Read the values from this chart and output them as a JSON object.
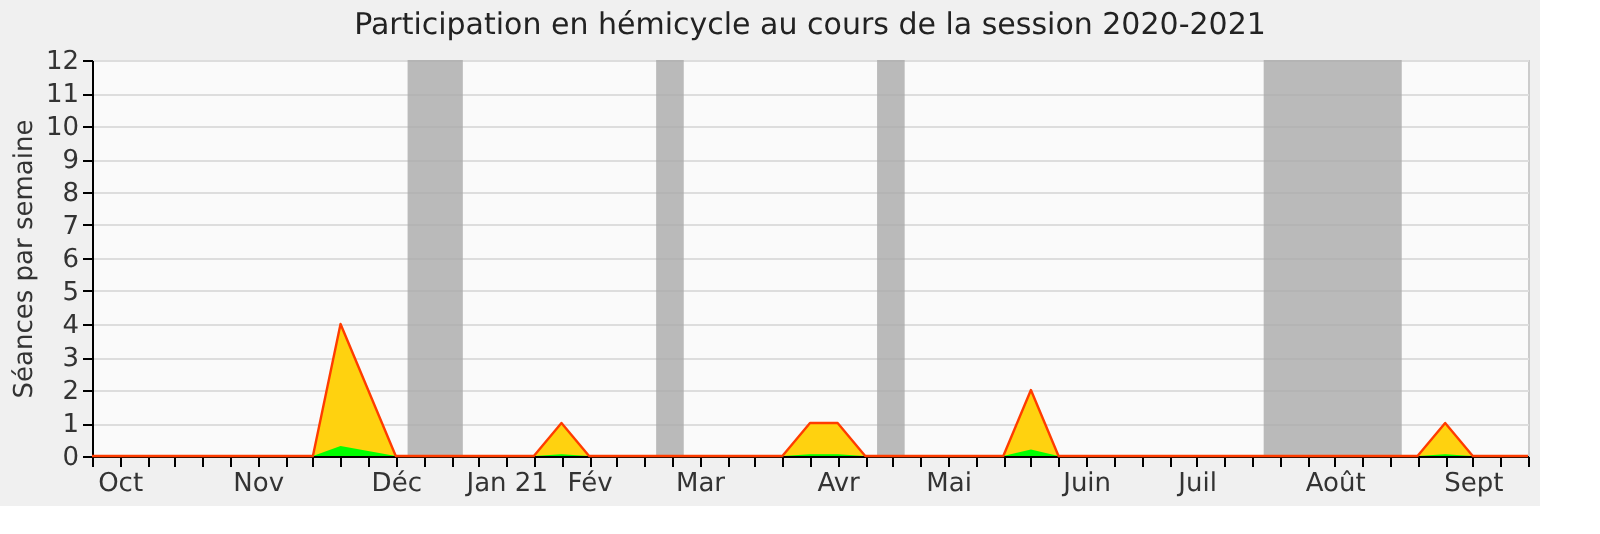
{
  "chart_data": {
    "type": "area",
    "title": "Participation en hémicycle au cours de la session 2020-2021",
    "ylabel": "Séances par semaine",
    "x": [
      "2020-09-28",
      "2020-10-05",
      "2020-10-12",
      "2020-10-19",
      "2020-10-26",
      "2020-11-02",
      "2020-11-09",
      "2020-11-16",
      "2020-11-23",
      "2020-11-30",
      "2020-12-07",
      "2020-12-14",
      "2020-12-21",
      "2020-12-28",
      "2021-01-04",
      "2021-01-11",
      "2021-01-18",
      "2021-01-25",
      "2021-02-01",
      "2021-02-08",
      "2021-02-15",
      "2021-02-22",
      "2021-03-01",
      "2021-03-08",
      "2021-03-15",
      "2021-03-22",
      "2021-03-29",
      "2021-04-05",
      "2021-04-12",
      "2021-04-19",
      "2021-04-26",
      "2021-05-03",
      "2021-05-10",
      "2021-05-17",
      "2021-05-24",
      "2021-05-31",
      "2021-06-07",
      "2021-06-14",
      "2021-06-21",
      "2021-06-28",
      "2021-07-05",
      "2021-07-12",
      "2021-07-19",
      "2021-07-26",
      "2021-08-02",
      "2021-08-09",
      "2021-08-16",
      "2021-08-23",
      "2021-08-30",
      "2021-09-06",
      "2021-09-13",
      "2021-09-20",
      "2021-09-27"
    ],
    "series": [
      {
        "type": "area",
        "color": "#ffd20f",
        "values": [
          0,
          0,
          0,
          0,
          0,
          0,
          0,
          0,
          0,
          4,
          2,
          0,
          0,
          0,
          0,
          0,
          0,
          1,
          0,
          0,
          0,
          0,
          0,
          0,
          0,
          0,
          1,
          1,
          0,
          0,
          0,
          0,
          0,
          0,
          2,
          0,
          0,
          0,
          0,
          0,
          0,
          0,
          0,
          0,
          0,
          0,
          0,
          0,
          0,
          1,
          0,
          0,
          0
        ]
      },
      {
        "type": "area",
        "color": "#00ff00",
        "values": [
          0,
          0,
          0,
          0,
          0,
          0,
          0,
          0,
          0,
          0.3,
          0.15,
          0,
          0,
          0,
          0,
          0,
          0,
          0.05,
          0,
          0,
          0,
          0,
          0,
          0,
          0,
          0,
          0.05,
          0.05,
          0,
          0,
          0,
          0,
          0,
          0,
          0.2,
          0,
          0,
          0,
          0,
          0,
          0,
          0,
          0,
          0,
          0,
          0,
          0,
          0,
          0,
          0.05,
          0,
          0,
          0
        ]
      }
    ],
    "xlim": [
      "2020-09-28",
      "2021-09-27"
    ],
    "xticks": [
      {
        "value": "2020-09-28",
        "label": null
      },
      {
        "value": "2020-10-05",
        "label": "Oct"
      },
      {
        "value": "2020-10-12",
        "label": null
      },
      {
        "value": "2020-10-19",
        "label": null
      },
      {
        "value": "2020-10-26",
        "label": null
      },
      {
        "value": "2020-11-02",
        "label": null
      },
      {
        "value": "2020-11-09",
        "label": "Nov"
      },
      {
        "value": "2020-11-16",
        "label": null
      },
      {
        "value": "2020-11-23",
        "label": null
      },
      {
        "value": "2020-11-30",
        "label": null
      },
      {
        "value": "2020-12-07",
        "label": null
      },
      {
        "value": "2020-12-14",
        "label": "Déc"
      },
      {
        "value": "2020-12-21",
        "label": null
      },
      {
        "value": "2020-12-28",
        "label": null
      },
      {
        "value": "2021-01-04",
        "label": null
      },
      {
        "value": "2021-01-11",
        "label": "Jan 21"
      },
      {
        "value": "2021-01-18",
        "label": null
      },
      {
        "value": "2021-01-25",
        "label": null
      },
      {
        "value": "2021-02-01",
        "label": "Fév"
      },
      {
        "value": "2021-02-08",
        "label": null
      },
      {
        "value": "2021-02-15",
        "label": null
      },
      {
        "value": "2021-02-22",
        "label": null
      },
      {
        "value": "2021-03-01",
        "label": "Mar"
      },
      {
        "value": "2021-03-08",
        "label": null
      },
      {
        "value": "2021-03-15",
        "label": null
      },
      {
        "value": "2021-03-22",
        "label": null
      },
      {
        "value": "2021-03-29",
        "label": null
      },
      {
        "value": "2021-04-05",
        "label": "Avr"
      },
      {
        "value": "2021-04-12",
        "label": null
      },
      {
        "value": "2021-04-19",
        "label": null
      },
      {
        "value": "2021-04-26",
        "label": null
      },
      {
        "value": "2021-05-03",
        "label": "Mai"
      },
      {
        "value": "2021-05-10",
        "label": null
      },
      {
        "value": "2021-05-17",
        "label": null
      },
      {
        "value": "2021-05-24",
        "label": null
      },
      {
        "value": "2021-05-31",
        "label": null
      },
      {
        "value": "2021-06-07",
        "label": "Juin"
      },
      {
        "value": "2021-06-14",
        "label": null
      },
      {
        "value": "2021-06-21",
        "label": null
      },
      {
        "value": "2021-06-28",
        "label": null
      },
      {
        "value": "2021-07-05",
        "label": "Juil"
      },
      {
        "value": "2021-07-12",
        "label": null
      },
      {
        "value": "2021-07-19",
        "label": null
      },
      {
        "value": "2021-07-26",
        "label": null
      },
      {
        "value": "2021-08-02",
        "label": null
      },
      {
        "value": "2021-08-09",
        "label": "Août"
      },
      {
        "value": "2021-08-16",
        "label": null
      },
      {
        "value": "2021-08-23",
        "label": null
      },
      {
        "value": "2021-08-30",
        "label": null
      },
      {
        "value": "2021-09-06",
        "label": null
      },
      {
        "value": "2021-09-13",
        "label": "Sept"
      },
      {
        "value": "2021-09-20",
        "label": null
      },
      {
        "value": "2021-09-27",
        "label": null
      }
    ],
    "ylim": [
      0,
      12
    ],
    "yticks": [
      0,
      1,
      2,
      3,
      4,
      5,
      6,
      7,
      8,
      9,
      10,
      11,
      12
    ],
    "bands": [
      {
        "axis": "x",
        "from": "2020-12-17",
        "to": "2020-12-31",
        "color": "#aaaaaa"
      },
      {
        "axis": "x",
        "from": "2021-02-18",
        "to": "2021-02-25",
        "color": "#aaaaaa"
      },
      {
        "axis": "x",
        "from": "2021-04-15",
        "to": "2021-04-22",
        "color": "#aaaaaa"
      },
      {
        "axis": "x",
        "from": "2021-07-22",
        "to": "2021-08-26",
        "color": "#aaaaaa"
      }
    ],
    "grid": "y"
  }
}
